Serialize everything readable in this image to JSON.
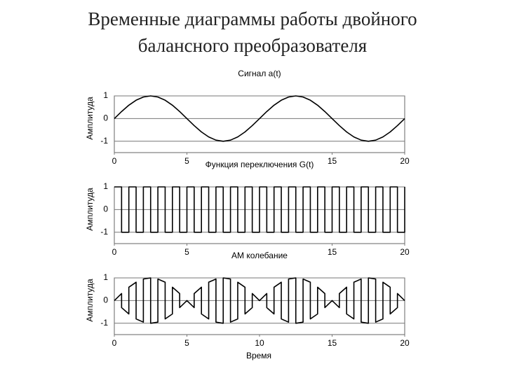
{
  "title": [
    "Временные диаграммы работы двойного",
    "балансного преобразователя"
  ],
  "chart_data": [
    {
      "type": "line",
      "title": "Сигнал a(t)",
      "ylabel": "Амплитуда",
      "color": "#000000",
      "xlim": [
        0,
        20
      ],
      "xticks": [
        0,
        5,
        15,
        20
      ],
      "ylim": [
        -1.5,
        1
      ],
      "yticks": [
        1,
        0,
        -1
      ],
      "grid": true,
      "x": [
        0,
        0.5,
        1,
        1.5,
        2,
        2.5,
        3,
        3.5,
        4,
        4.5,
        5,
        5.5,
        6,
        6.5,
        7,
        7.5,
        8,
        8.5,
        9,
        9.5,
        10,
        10.5,
        11,
        11.5,
        12,
        12.5,
        13,
        13.5,
        14,
        14.5,
        15,
        15.5,
        16,
        16.5,
        17,
        17.5,
        18,
        18.5,
        19,
        19.5,
        20
      ],
      "values": [
        0,
        0.31,
        0.59,
        0.81,
        0.95,
        1,
        0.95,
        0.81,
        0.59,
        0.31,
        0,
        -0.31,
        -0.59,
        -0.81,
        -0.95,
        -1,
        -0.95,
        -0.81,
        -0.59,
        -0.31,
        0,
        0.31,
        0.59,
        0.81,
        0.95,
        1,
        0.95,
        0.81,
        0.59,
        0.31,
        0,
        -0.31,
        -0.59,
        -0.81,
        -0.95,
        -1,
        -0.95,
        -0.81,
        -0.59,
        -0.31,
        0
      ]
    },
    {
      "type": "line",
      "step": "post",
      "title": "Функция переключения G(t)",
      "ylabel": "Амплитуда",
      "color": "#000000",
      "xlim": [
        0,
        20
      ],
      "xticks": [
        0,
        5,
        15,
        20
      ],
      "ylim": [
        -1.5,
        1
      ],
      "yticks": [
        1,
        0,
        -1
      ],
      "grid": true,
      "x": [
        0,
        0.5,
        1,
        1.5,
        2,
        2.5,
        3,
        3.5,
        4,
        4.5,
        5,
        5.5,
        6,
        6.5,
        7,
        7.5,
        8,
        8.5,
        9,
        9.5,
        10,
        10.5,
        11,
        11.5,
        12,
        12.5,
        13,
        13.5,
        14,
        14.5,
        15,
        15.5,
        16,
        16.5,
        17,
        17.5,
        18,
        18.5,
        19,
        19.5,
        20
      ],
      "values": [
        1,
        -1,
        1,
        -1,
        1,
        -1,
        1,
        -1,
        1,
        -1,
        1,
        -1,
        1,
        -1,
        1,
        -1,
        1,
        -1,
        1,
        -1,
        1,
        -1,
        1,
        -1,
        1,
        -1,
        1,
        -1,
        1,
        -1,
        1,
        -1,
        1,
        -1,
        1,
        -1,
        1,
        -1,
        1,
        -1,
        1
      ]
    },
    {
      "type": "line",
      "title": "АМ колебание",
      "ylabel": "Амплитуда",
      "xlabel": "Время",
      "color": "#000000",
      "xlim": [
        0,
        20
      ],
      "xticks": [
        0,
        5,
        10,
        15,
        20
      ],
      "ylim": [
        -1.5,
        1
      ],
      "yticks": [
        1,
        0,
        -1
      ],
      "grid": true,
      "x": [
        0,
        0.5,
        0.5,
        1,
        1,
        1.5,
        1.5,
        2,
        2,
        2.5,
        2.5,
        3,
        3,
        3.5,
        3.5,
        4,
        4,
        4.5,
        4.5,
        5,
        5,
        5.5,
        5.5,
        6,
        6,
        6.5,
        6.5,
        7,
        7,
        7.5,
        7.5,
        8,
        8,
        8.5,
        8.5,
        9,
        9,
        9.5,
        9.5,
        10,
        10,
        10.5,
        10.5,
        11,
        11,
        11.5,
        11.5,
        12,
        12,
        12.5,
        12.5,
        13,
        13,
        13.5,
        13.5,
        14,
        14,
        14.5,
        14.5,
        15,
        15,
        15.5,
        15.5,
        16,
        16,
        16.5,
        16.5,
        17,
        17,
        17.5,
        17.5,
        18,
        18,
        18.5,
        18.5,
        19,
        19,
        19.5,
        19.5,
        20
      ],
      "values": [
        0,
        0.31,
        -0.31,
        -0.59,
        0.59,
        0.81,
        -0.81,
        -0.95,
        0.95,
        1,
        -1,
        -0.95,
        0.95,
        0.81,
        -0.81,
        -0.59,
        0.59,
        0.31,
        -0.31,
        0,
        0,
        -0.31,
        0.31,
        0.59,
        -0.59,
        -0.81,
        0.81,
        0.95,
        -0.95,
        -1,
        1,
        0.95,
        -0.95,
        -0.81,
        0.81,
        0.59,
        -0.59,
        -0.31,
        0.31,
        0,
        0,
        0.31,
        -0.31,
        -0.59,
        0.59,
        0.81,
        -0.81,
        -0.95,
        0.95,
        1,
        -1,
        -0.95,
        0.95,
        0.81,
        -0.81,
        -0.59,
        0.59,
        0.31,
        -0.31,
        0,
        0,
        -0.31,
        0.31,
        0.59,
        -0.59,
        -0.81,
        0.81,
        0.95,
        -0.95,
        -1,
        1,
        0.95,
        -0.95,
        -0.81,
        0.81,
        0.59,
        -0.59,
        -0.31,
        0.31,
        0
      ]
    }
  ]
}
